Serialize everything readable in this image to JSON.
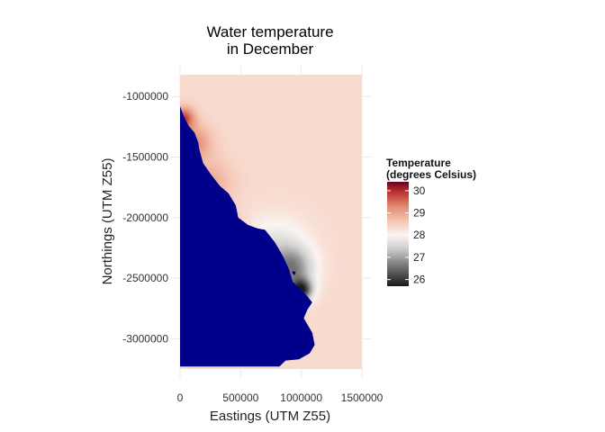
{
  "chart_data": {
    "type": "heatmap",
    "title_lines": [
      "Water temperature",
      "in December"
    ],
    "xlabel": "Eastings (UTM Z55)",
    "ylabel": "Northings (UTM Z55)",
    "xlim": [
      0,
      1500000
    ],
    "ylim": [
      -3250000,
      -820000
    ],
    "x_ticks": [
      0,
      500000,
      1000000,
      1500000
    ],
    "y_ticks": [
      -1000000,
      -1500000,
      -2000000,
      -2500000,
      -3000000
    ],
    "grid": true,
    "land_color": "#00008B",
    "colorbar": {
      "title_lines": [
        "Temperature",
        "(degrees Celsius)"
      ],
      "range": [
        25.7,
        30.4
      ],
      "ticks": [
        26,
        27,
        28,
        29,
        30
      ],
      "stops": [
        {
          "value": 25.7,
          "color": "#1a1a1a"
        },
        {
          "value": 26.5,
          "color": "#6b6b6b"
        },
        {
          "value": 27.4,
          "color": "#cfcfcf"
        },
        {
          "value": 28.0,
          "color": "#fbf5f2"
        },
        {
          "value": 28.6,
          "color": "#f6c8b6"
        },
        {
          "value": 29.3,
          "color": "#e08a6e"
        },
        {
          "value": 30.0,
          "color": "#b62a2f"
        },
        {
          "value": 30.4,
          "color": "#67001f"
        }
      ]
    },
    "field": {
      "background_temp": 28.35,
      "hotspots": [
        {
          "x": 30000,
          "y": -1180000,
          "temp": 29.8,
          "radius": 90000
        },
        {
          "x": 120000,
          "y": -1380000,
          "temp": 29.2,
          "radius": 140000
        },
        {
          "x": 250000,
          "y": -1700000,
          "temp": 28.9,
          "radius": 180000
        },
        {
          "x": 380000,
          "y": -2080000,
          "temp": 28.7,
          "radius": 150000
        }
      ],
      "coldspots": [
        {
          "x": 780000,
          "y": -2280000,
          "temp": 27.6,
          "radius": 260000
        },
        {
          "x": 930000,
          "y": -2420000,
          "temp": 27.0,
          "radius": 170000
        },
        {
          "x": 1000000,
          "y": -2600000,
          "temp": 26.0,
          "radius": 90000
        }
      ]
    },
    "coastline": [
      [
        0,
        -1080000
      ],
      [
        30000,
        -1160000
      ],
      [
        70000,
        -1240000
      ],
      [
        120000,
        -1300000
      ],
      [
        150000,
        -1380000
      ],
      [
        160000,
        -1440000
      ],
      [
        190000,
        -1550000
      ],
      [
        260000,
        -1650000
      ],
      [
        330000,
        -1740000
      ],
      [
        400000,
        -1800000
      ],
      [
        460000,
        -1900000
      ],
      [
        480000,
        -2000000
      ],
      [
        560000,
        -2060000
      ],
      [
        640000,
        -2090000
      ],
      [
        700000,
        -2100000
      ],
      [
        780000,
        -2200000
      ],
      [
        850000,
        -2320000
      ],
      [
        900000,
        -2430000
      ],
      [
        930000,
        -2530000
      ],
      [
        980000,
        -2580000
      ],
      [
        1050000,
        -2650000
      ],
      [
        1090000,
        -2700000
      ],
      [
        1050000,
        -2760000
      ],
      [
        1020000,
        -2830000
      ],
      [
        1090000,
        -2950000
      ],
      [
        1110000,
        -3050000
      ],
      [
        1070000,
        -3120000
      ],
      [
        980000,
        -3170000
      ],
      [
        870000,
        -3180000
      ],
      [
        820000,
        -3230000
      ],
      [
        0,
        -3230000
      ]
    ],
    "islands": [
      [
        [
          440000,
          -2180000
        ],
        [
          470000,
          -2190000
        ],
        [
          460000,
          -2210000
        ],
        [
          435000,
          -2200000
        ]
      ],
      [
        [
          580000,
          -2240000
        ],
        [
          610000,
          -2250000
        ],
        [
          600000,
          -2275000
        ],
        [
          575000,
          -2262000
        ]
      ],
      [
        [
          720000,
          -2330000
        ],
        [
          760000,
          -2345000
        ],
        [
          745000,
          -2370000
        ],
        [
          715000,
          -2355000
        ]
      ],
      [
        [
          930000,
          -2440000
        ],
        [
          955000,
          -2450000
        ],
        [
          945000,
          -2475000
        ],
        [
          925000,
          -2460000
        ]
      ]
    ]
  }
}
